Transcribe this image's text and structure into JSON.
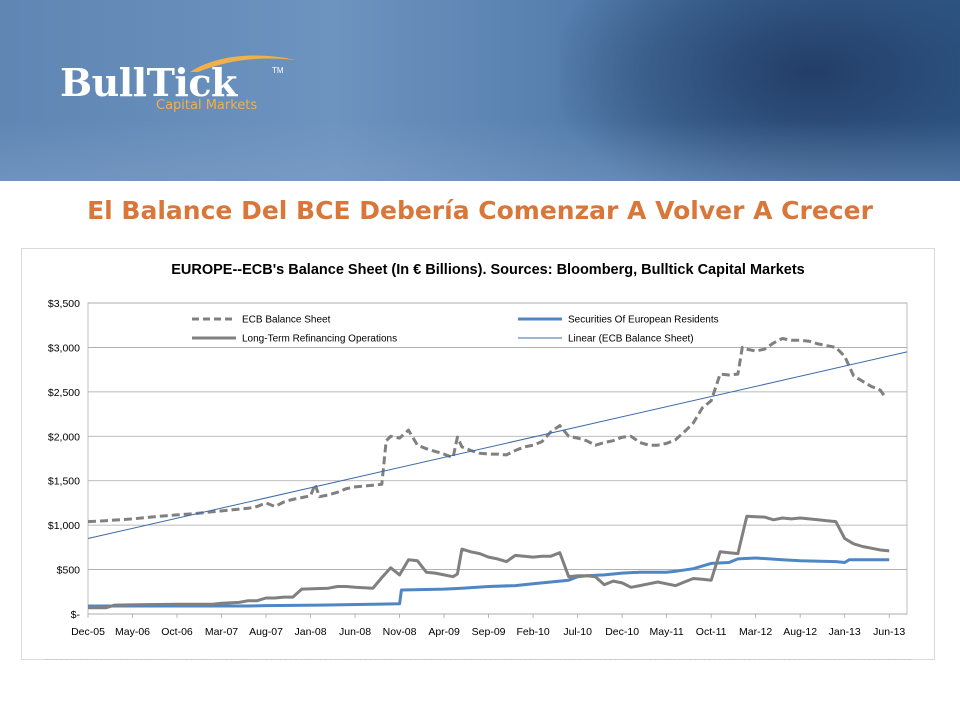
{
  "slide": {
    "title": "El Balance Del BCE Debería Comenzar A Volver A Crecer"
  },
  "logo": {
    "name": "BullTick",
    "tm": "TM",
    "subtitle": "Capital Markets",
    "accent_color": "#f0b14a"
  },
  "colors": {
    "title": "#d9773a",
    "banner": "#5f86b4",
    "gray_series": "#808080",
    "blue_series": "#4f86c6",
    "trend": "#3b6aa6"
  },
  "chart_data": {
    "type": "line",
    "title": "EUROPE--ECB's Balance Sheet (In € Billions). Sources: Bloomberg, Bulltick Capital Markets",
    "xlabel": "",
    "ylabel": "",
    "ylim": [
      0,
      3500
    ],
    "grid": true,
    "legend_position": "top",
    "x_tick_labels": [
      "Dec-05",
      "May-06",
      "Oct-06",
      "Mar-07",
      "Aug-07",
      "Jan-08",
      "Jun-08",
      "Nov-08",
      "Apr-09",
      "Sep-09",
      "Feb-10",
      "Jul-10",
      "Dec-10",
      "May-11",
      "Oct-11",
      "Mar-12",
      "Aug-12",
      "Jan-13",
      "Jun-13"
    ],
    "y_tick_labels": [
      "$-",
      "$500",
      "$1,000",
      "$1,500",
      "$2,000",
      "$2,500",
      "$3,000",
      "$3,500"
    ],
    "y_ticks": [
      0,
      500,
      1000,
      1500,
      2000,
      2500,
      3000,
      3500
    ],
    "x_months_total": 92,
    "series": [
      {
        "name": "ECB Balance Sheet",
        "style": "dashed",
        "color": "#808080",
        "points": [
          [
            0,
            1040
          ],
          [
            2,
            1050
          ],
          [
            5,
            1070
          ],
          [
            8,
            1100
          ],
          [
            10,
            1115
          ],
          [
            12,
            1130
          ],
          [
            14,
            1150
          ],
          [
            16,
            1170
          ],
          [
            18,
            1190
          ],
          [
            19,
            1210
          ],
          [
            20,
            1250
          ],
          [
            21,
            1210
          ],
          [
            22,
            1260
          ],
          [
            23,
            1290
          ],
          [
            24,
            1310
          ],
          [
            25,
            1330
          ],
          [
            25.5,
            1460
          ],
          [
            26,
            1320
          ],
          [
            27,
            1340
          ],
          [
            28,
            1370
          ],
          [
            29,
            1410
          ],
          [
            30,
            1430
          ],
          [
            31,
            1440
          ],
          [
            32,
            1450
          ],
          [
            33,
            1460
          ],
          [
            33.5,
            1950
          ],
          [
            34,
            2000
          ],
          [
            35,
            1980
          ],
          [
            36,
            2070
          ],
          [
            37,
            1900
          ],
          [
            38,
            1860
          ],
          [
            39,
            1830
          ],
          [
            40,
            1800
          ],
          [
            41,
            1760
          ],
          [
            41.5,
            1990
          ],
          [
            42,
            1880
          ],
          [
            43,
            1840
          ],
          [
            44,
            1810
          ],
          [
            45,
            1800
          ],
          [
            46,
            1800
          ],
          [
            47,
            1790
          ],
          [
            48,
            1840
          ],
          [
            49,
            1880
          ],
          [
            50,
            1900
          ],
          [
            51,
            1940
          ],
          [
            52,
            2050
          ],
          [
            53,
            2120
          ],
          [
            54,
            2000
          ],
          [
            55,
            1980
          ],
          [
            56,
            1950
          ],
          [
            57,
            1900
          ],
          [
            58,
            1930
          ],
          [
            59,
            1950
          ],
          [
            60,
            1990
          ],
          [
            61,
            2000
          ],
          [
            62,
            1930
          ],
          [
            63,
            1900
          ],
          [
            64,
            1900
          ],
          [
            65,
            1920
          ],
          [
            66,
            1960
          ],
          [
            67,
            2050
          ],
          [
            68,
            2150
          ],
          [
            69,
            2320
          ],
          [
            70,
            2400
          ],
          [
            71,
            2700
          ],
          [
            72,
            2690
          ],
          [
            73,
            2700
          ],
          [
            73.5,
            3000
          ],
          [
            74,
            2980
          ],
          [
            75,
            2960
          ],
          [
            76,
            2980
          ],
          [
            77,
            3050
          ],
          [
            78,
            3100
          ],
          [
            79,
            3080
          ],
          [
            80,
            3080
          ],
          [
            81,
            3070
          ],
          [
            82,
            3040
          ],
          [
            83,
            3020
          ],
          [
            84,
            3000
          ],
          [
            85,
            2900
          ],
          [
            86,
            2680
          ],
          [
            87,
            2620
          ],
          [
            88,
            2560
          ],
          [
            89,
            2520
          ],
          [
            89.5,
            2450
          ]
        ]
      },
      {
        "name": "Securities Of European Residents",
        "style": "solid",
        "color": "#4f86c6",
        "points": [
          [
            0,
            90
          ],
          [
            5,
            90
          ],
          [
            10,
            90
          ],
          [
            15,
            90
          ],
          [
            18,
            90
          ],
          [
            20,
            95
          ],
          [
            26,
            100
          ],
          [
            32,
            110
          ],
          [
            35,
            115
          ],
          [
            35.2,
            270
          ],
          [
            40,
            280
          ],
          [
            42,
            290
          ],
          [
            45,
            310
          ],
          [
            48,
            320
          ],
          [
            50,
            340
          ],
          [
            52,
            360
          ],
          [
            54,
            380
          ],
          [
            55,
            420
          ],
          [
            56,
            430
          ],
          [
            58,
            440
          ],
          [
            60,
            460
          ],
          [
            62,
            470
          ],
          [
            65,
            470
          ],
          [
            66,
            480
          ],
          [
            68,
            510
          ],
          [
            70,
            570
          ],
          [
            72,
            580
          ],
          [
            73,
            620
          ],
          [
            75,
            630
          ],
          [
            78,
            610
          ],
          [
            80,
            600
          ],
          [
            84,
            590
          ],
          [
            85,
            580
          ],
          [
            85.5,
            610
          ],
          [
            88,
            610
          ],
          [
            90,
            610
          ]
        ]
      },
      {
        "name": "Long-Term Refinancing Operations",
        "style": "solid",
        "color": "#808080",
        "points": [
          [
            0,
            70
          ],
          [
            2,
            70
          ],
          [
            3,
            100
          ],
          [
            10,
            110
          ],
          [
            14,
            110
          ],
          [
            15,
            120
          ],
          [
            17,
            130
          ],
          [
            18,
            150
          ],
          [
            19,
            150
          ],
          [
            20,
            180
          ],
          [
            21,
            180
          ],
          [
            22,
            190
          ],
          [
            23,
            190
          ],
          [
            24,
            280
          ],
          [
            27,
            290
          ],
          [
            28,
            310
          ],
          [
            29,
            310
          ],
          [
            30,
            300
          ],
          [
            32,
            290
          ],
          [
            33,
            410
          ],
          [
            34,
            520
          ],
          [
            35,
            440
          ],
          [
            36,
            610
          ],
          [
            37,
            600
          ],
          [
            38,
            470
          ],
          [
            39,
            460
          ],
          [
            40,
            440
          ],
          [
            41,
            420
          ],
          [
            41.5,
            450
          ],
          [
            42,
            730
          ],
          [
            43,
            700
          ],
          [
            44,
            680
          ],
          [
            45,
            640
          ],
          [
            46,
            620
          ],
          [
            47,
            590
          ],
          [
            48,
            660
          ],
          [
            50,
            640
          ],
          [
            51,
            650
          ],
          [
            52,
            650
          ],
          [
            53,
            690
          ],
          [
            54,
            420
          ],
          [
            55,
            430
          ],
          [
            56,
            430
          ],
          [
            57,
            420
          ],
          [
            58,
            330
          ],
          [
            59,
            370
          ],
          [
            60,
            350
          ],
          [
            61,
            300
          ],
          [
            62,
            320
          ],
          [
            63,
            340
          ],
          [
            64,
            360
          ],
          [
            65,
            340
          ],
          [
            66,
            320
          ],
          [
            67,
            360
          ],
          [
            68,
            400
          ],
          [
            69,
            390
          ],
          [
            70,
            380
          ],
          [
            71,
            700
          ],
          [
            72,
            690
          ],
          [
            73,
            680
          ],
          [
            74,
            1100
          ],
          [
            75,
            1095
          ],
          [
            76,
            1090
          ],
          [
            77,
            1060
          ],
          [
            78,
            1080
          ],
          [
            79,
            1070
          ],
          [
            80,
            1080
          ],
          [
            81,
            1070
          ],
          [
            82,
            1060
          ],
          [
            83,
            1050
          ],
          [
            84,
            1040
          ],
          [
            85,
            850
          ],
          [
            86,
            790
          ],
          [
            87,
            760
          ],
          [
            88,
            740
          ],
          [
            89,
            720
          ],
          [
            90,
            710
          ]
        ]
      },
      {
        "name": "Linear (ECB Balance Sheet)",
        "style": "solid-thin",
        "color": "#3b6aa6",
        "points": [
          [
            0,
            850
          ],
          [
            92,
            2950
          ]
        ]
      }
    ]
  }
}
